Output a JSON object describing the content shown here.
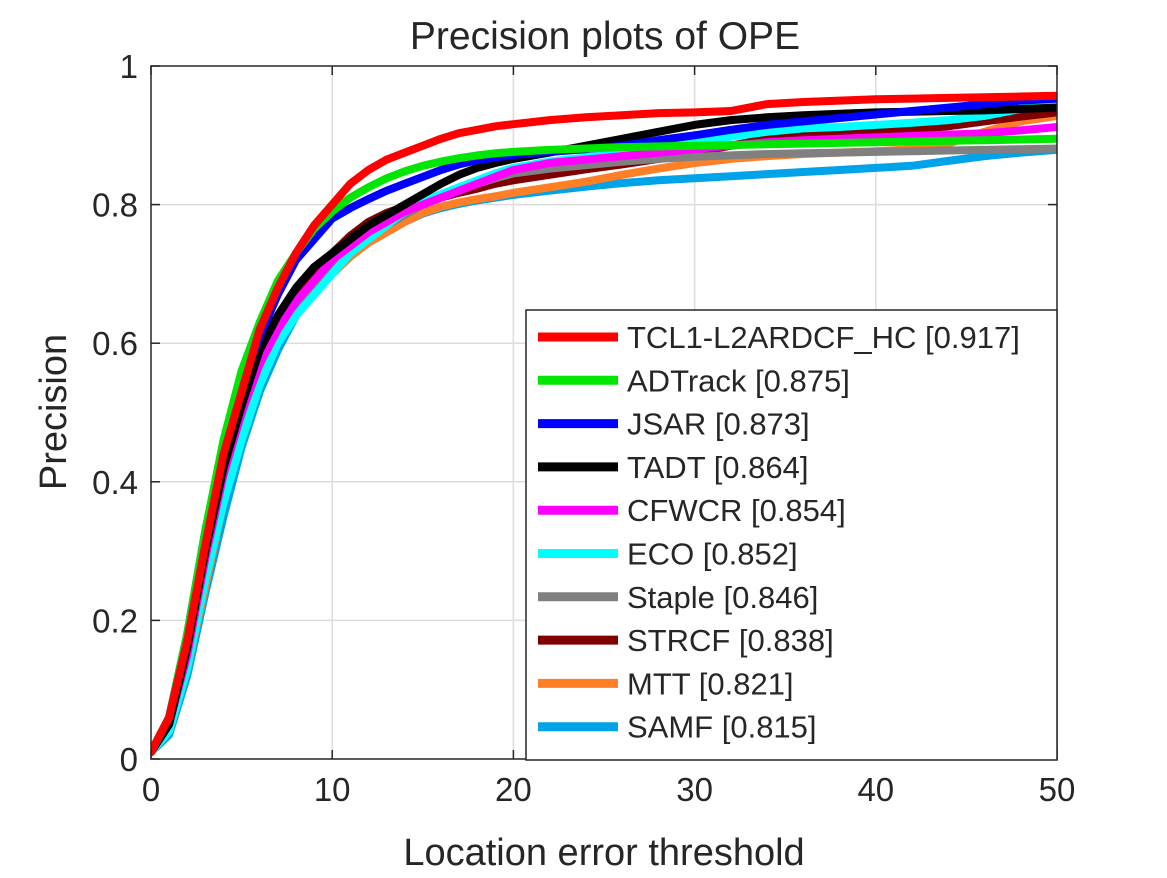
{
  "chart_data": {
    "type": "line",
    "title": "Precision plots of OPE",
    "xlabel": "Location error threshold",
    "ylabel": "Precision",
    "xlim": [
      0,
      50
    ],
    "ylim": [
      0,
      1
    ],
    "xticks": [
      0,
      10,
      20,
      30,
      40,
      50
    ],
    "xtick_labels": [
      "0",
      "10",
      "20",
      "30",
      "40",
      "50"
    ],
    "yticks": [
      0,
      0.2,
      0.4,
      0.6,
      0.8,
      1
    ],
    "ytick_labels": [
      "0",
      "0.2",
      "0.4",
      "0.6",
      "0.8",
      "1"
    ],
    "grid": true,
    "legend_position": "bottom-right",
    "x": [
      0,
      1,
      2,
      3,
      4,
      5,
      6,
      7,
      8,
      9,
      10,
      11,
      12,
      13,
      14,
      15,
      16,
      17,
      18,
      19,
      20,
      22,
      24,
      26,
      28,
      30,
      32,
      34,
      36,
      38,
      40,
      42,
      44,
      46,
      48,
      50
    ],
    "series": [
      {
        "name": "TCL1-L2ARDCF_HC [0.917]",
        "color": "#ff0000",
        "values": [
          0.01,
          0.06,
          0.17,
          0.31,
          0.44,
          0.53,
          0.62,
          0.68,
          0.73,
          0.77,
          0.8,
          0.83,
          0.85,
          0.865,
          0.875,
          0.885,
          0.895,
          0.903,
          0.908,
          0.913,
          0.916,
          0.922,
          0.926,
          0.929,
          0.932,
          0.933,
          0.935,
          0.945,
          0.948,
          0.95,
          0.952,
          0.953,
          0.954,
          0.955,
          0.956,
          0.957
        ]
      },
      {
        "name": "ADTrack [0.875]",
        "color": "#00e600",
        "values": [
          0.01,
          0.06,
          0.18,
          0.33,
          0.46,
          0.56,
          0.63,
          0.69,
          0.73,
          0.765,
          0.79,
          0.81,
          0.825,
          0.838,
          0.848,
          0.856,
          0.862,
          0.867,
          0.871,
          0.874,
          0.876,
          0.879,
          0.881,
          0.883,
          0.884,
          0.885,
          0.886,
          0.887,
          0.888,
          0.889,
          0.89,
          0.891,
          0.892,
          0.893,
          0.894,
          0.895
        ]
      },
      {
        "name": "JSAR [0.873]",
        "color": "#0000ff",
        "values": [
          0.01,
          0.06,
          0.18,
          0.33,
          0.45,
          0.54,
          0.61,
          0.67,
          0.72,
          0.75,
          0.78,
          0.795,
          0.808,
          0.82,
          0.83,
          0.84,
          0.85,
          0.858,
          0.864,
          0.868,
          0.872,
          0.876,
          0.88,
          0.885,
          0.893,
          0.9,
          0.908,
          0.915,
          0.92,
          0.925,
          0.93,
          0.935,
          0.94,
          0.945,
          0.95,
          0.953
        ]
      },
      {
        "name": "TADT [0.864]",
        "color": "#000000",
        "values": [
          0.01,
          0.05,
          0.16,
          0.3,
          0.42,
          0.51,
          0.59,
          0.64,
          0.68,
          0.71,
          0.73,
          0.75,
          0.77,
          0.785,
          0.8,
          0.815,
          0.83,
          0.843,
          0.853,
          0.86,
          0.866,
          0.875,
          0.885,
          0.895,
          0.905,
          0.915,
          0.922,
          0.926,
          0.929,
          0.931,
          0.933,
          0.934,
          0.935,
          0.936,
          0.938,
          0.94
        ]
      },
      {
        "name": "CFWCR [0.854]",
        "color": "#ff00ff",
        "values": [
          0.01,
          0.05,
          0.15,
          0.29,
          0.41,
          0.5,
          0.57,
          0.62,
          0.66,
          0.69,
          0.72,
          0.74,
          0.76,
          0.775,
          0.79,
          0.8,
          0.81,
          0.82,
          0.83,
          0.84,
          0.85,
          0.86,
          0.865,
          0.87,
          0.875,
          0.88,
          0.885,
          0.89,
          0.893,
          0.895,
          0.897,
          0.899,
          0.901,
          0.903,
          0.907,
          0.912
        ]
      },
      {
        "name": "ECO [0.852]",
        "color": "#00ffff",
        "values": [
          0.01,
          0.04,
          0.13,
          0.26,
          0.37,
          0.46,
          0.54,
          0.6,
          0.64,
          0.67,
          0.7,
          0.73,
          0.75,
          0.77,
          0.79,
          0.805,
          0.815,
          0.825,
          0.835,
          0.845,
          0.853,
          0.862,
          0.868,
          0.874,
          0.882,
          0.89,
          0.898,
          0.905,
          0.91,
          0.912,
          0.915,
          0.918,
          0.922,
          0.928,
          0.938,
          0.95
        ]
      },
      {
        "name": "Staple [0.846]",
        "color": "#808080",
        "values": [
          0.01,
          0.04,
          0.14,
          0.27,
          0.38,
          0.47,
          0.55,
          0.61,
          0.65,
          0.68,
          0.715,
          0.74,
          0.755,
          0.77,
          0.785,
          0.8,
          0.81,
          0.82,
          0.83,
          0.838,
          0.845,
          0.852,
          0.857,
          0.862,
          0.866,
          0.869,
          0.871,
          0.873,
          0.874,
          0.875,
          0.876,
          0.877,
          0.878,
          0.879,
          0.88,
          0.881
        ]
      },
      {
        "name": "STRCF [0.838]",
        "color": "#800000",
        "values": [
          0.01,
          0.05,
          0.15,
          0.29,
          0.4,
          0.49,
          0.56,
          0.62,
          0.67,
          0.7,
          0.73,
          0.755,
          0.775,
          0.788,
          0.797,
          0.805,
          0.81,
          0.817,
          0.823,
          0.83,
          0.835,
          0.843,
          0.851,
          0.858,
          0.866,
          0.875,
          0.885,
          0.895,
          0.9,
          0.903,
          0.905,
          0.908,
          0.913,
          0.92,
          0.927,
          0.933
        ]
      },
      {
        "name": "MTT [0.821]",
        "color": "#ff7f27",
        "values": [
          0.01,
          0.04,
          0.13,
          0.25,
          0.37,
          0.46,
          0.54,
          0.6,
          0.65,
          0.68,
          0.7,
          0.725,
          0.745,
          0.76,
          0.775,
          0.788,
          0.797,
          0.803,
          0.808,
          0.812,
          0.817,
          0.825,
          0.833,
          0.843,
          0.852,
          0.86,
          0.866,
          0.87,
          0.873,
          0.875,
          0.877,
          0.88,
          0.888,
          0.905,
          0.92,
          0.928
        ]
      },
      {
        "name": "SAMF [0.815]",
        "color": "#00a2e8",
        "values": [
          0.01,
          0.035,
          0.12,
          0.24,
          0.35,
          0.45,
          0.53,
          0.59,
          0.64,
          0.675,
          0.7,
          0.725,
          0.745,
          0.76,
          0.775,
          0.787,
          0.795,
          0.801,
          0.806,
          0.81,
          0.814,
          0.82,
          0.826,
          0.831,
          0.835,
          0.838,
          0.841,
          0.844,
          0.847,
          0.85,
          0.853,
          0.856,
          0.863,
          0.87,
          0.875,
          0.879
        ]
      }
    ]
  }
}
